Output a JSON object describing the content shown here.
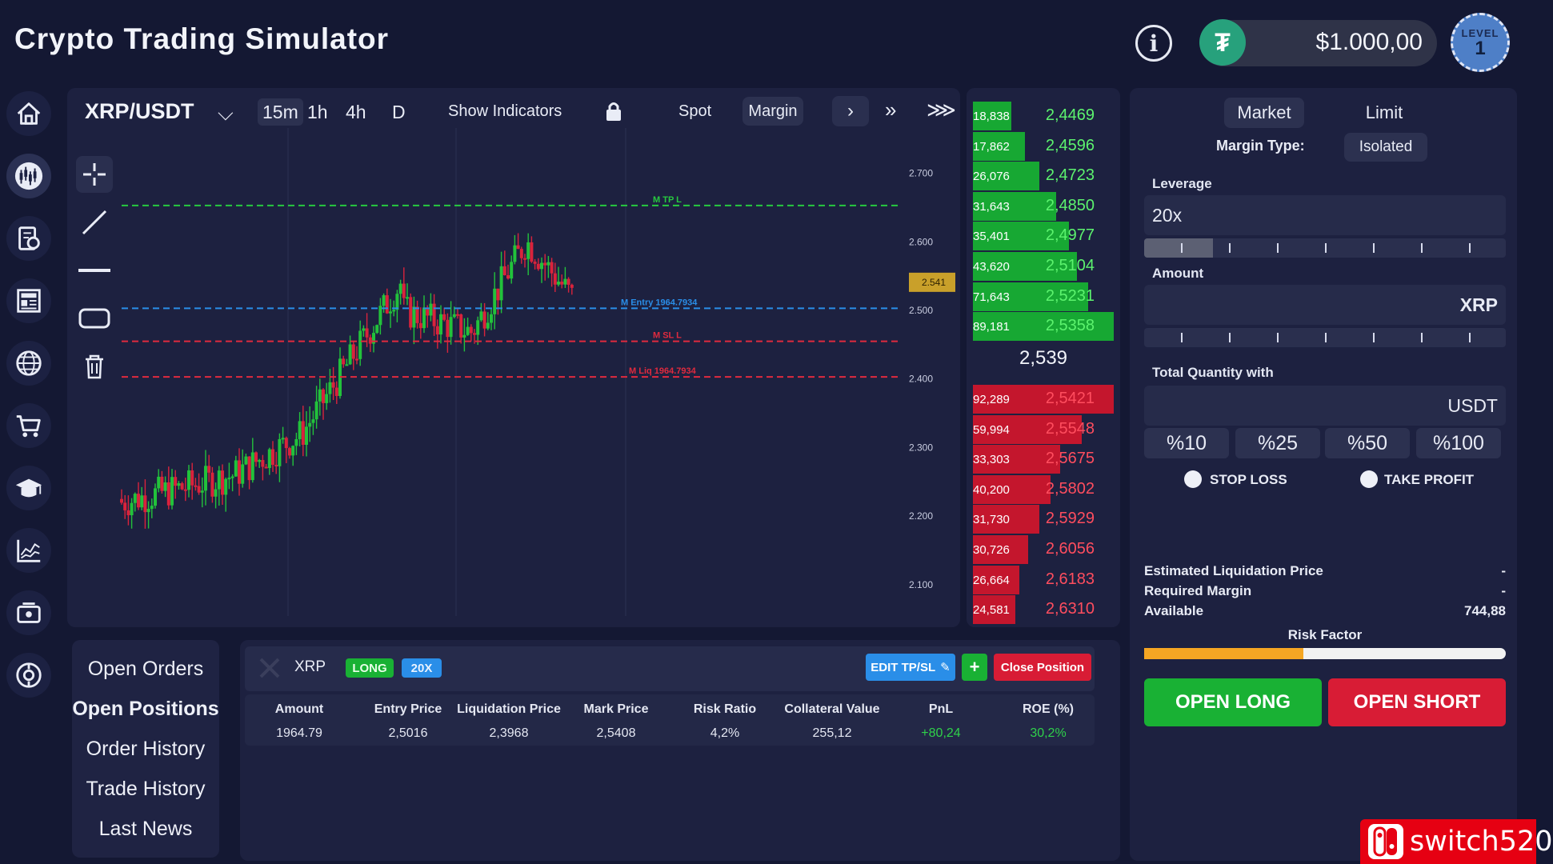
{
  "app": {
    "title": "Crypto Trading Simulator",
    "balance": "$1.000,00",
    "level_label": "LEVEL",
    "level": "1",
    "info_glyph": "i",
    "tether_glyph": "₮"
  },
  "sidebar": {
    "items": [
      "home-icon",
      "chart-icon",
      "portfolio-icon",
      "news-icon",
      "globe-icon",
      "cart-icon",
      "academy-icon",
      "analytics-icon",
      "exchange-icon",
      "settings-icon"
    ],
    "active_index": 1
  },
  "chart": {
    "pair": "XRP/USDT",
    "pair_chevron": "⌵",
    "timeframes": [
      "15m",
      "1h",
      "4h",
      "D"
    ],
    "selected_timeframe": "15m",
    "show_indicators": "Show Indicators",
    "spot": "Spot",
    "margin": "Margin",
    "next": "›",
    "double_next": "»",
    "triple_next": "⋙",
    "price_axis": [
      "2.700",
      "2.600",
      "2.500",
      "2.400",
      "2.300",
      "2.200",
      "2.100"
    ],
    "current_price_tag": "2.541",
    "line_labels": {
      "tp": "M TP L",
      "entry": "M Entry 1964.7934",
      "sl": "M SL L",
      "liq": "M Liq 1964.7934"
    },
    "tools": [
      "crosshair-icon",
      "trendline-icon",
      "horizontal-line-icon",
      "rectangle-icon",
      "trash-icon"
    ]
  },
  "orderbook": {
    "asks": [
      {
        "qty": "18,838",
        "price": "2,4469",
        "depth": 0.27
      },
      {
        "qty": "17,862",
        "price": "2,4596",
        "depth": 0.37
      },
      {
        "qty": "26,076",
        "price": "2,4723",
        "depth": 0.47
      },
      {
        "qty": "31,643",
        "price": "2,4850",
        "depth": 0.59
      },
      {
        "qty": "35,401",
        "price": "2,4977",
        "depth": 0.68
      },
      {
        "qty": "43,620",
        "price": "2,5104",
        "depth": 0.74
      },
      {
        "qty": "71,643",
        "price": "2,5231",
        "depth": 0.82
      },
      {
        "qty": "89,181",
        "price": "2,5358",
        "depth": 1.0
      }
    ],
    "mid": "2,539",
    "bids": [
      {
        "qty": "92,289",
        "price": "2,5421",
        "depth": 1.0
      },
      {
        "qty": "59,994",
        "price": "2,5548",
        "depth": 0.77
      },
      {
        "qty": "33,303",
        "price": "2,5675",
        "depth": 0.62
      },
      {
        "qty": "40,200",
        "price": "2,5802",
        "depth": 0.55
      },
      {
        "qty": "31,730",
        "price": "2,5929",
        "depth": 0.47
      },
      {
        "qty": "30,726",
        "price": "2,6056",
        "depth": 0.39
      },
      {
        "qty": "26,664",
        "price": "2,6183",
        "depth": 0.33
      },
      {
        "qty": "24,581",
        "price": "2,6310",
        "depth": 0.3
      }
    ]
  },
  "order_form": {
    "tabs": [
      "Market",
      "Limit"
    ],
    "selected_tab": "Market",
    "margin_type_label": "Margin Type:",
    "margin_type": "Isolated",
    "leverage_label": "Leverage",
    "leverage": "20x",
    "leverage_fraction": 0.19,
    "amount_label": "Amount",
    "amount_unit": "XRP",
    "total_label": "Total Quantity with",
    "total_unit": "USDT",
    "percents": [
      "%10",
      "%25",
      "%50",
      "%100"
    ],
    "stop_loss": "STOP LOSS",
    "take_profit": "TAKE PROFIT",
    "est_liq_label": "Estimated Liquidation Price",
    "est_liq": "-",
    "req_margin_label": "Required Margin",
    "req_margin": "-",
    "available_label": "Available",
    "available": "744,88",
    "risk_label": "Risk Factor",
    "risk_fraction": 0.44,
    "open_long": "OPEN LONG",
    "open_short": "OPEN SHORT"
  },
  "bottom_tabs": [
    "Open Orders",
    "Open Positions",
    "Order History",
    "Trade History",
    "Last News"
  ],
  "selected_bottom_tab": "Open Positions",
  "position": {
    "symbol": "XRP",
    "side": "LONG",
    "leverage": "20X",
    "edit_tpsl": "EDIT TP/SL",
    "add": "+",
    "close": "Close Position",
    "columns": [
      "Amount",
      "Entry Price",
      "Liquidation Price",
      "Mark Price",
      "Risk Ratio",
      "Collateral Value",
      "PnL",
      "ROE (%)"
    ],
    "values": [
      "1964.79",
      "2,5016",
      "2,3968",
      "2,5408",
      "4,2%",
      "255,12",
      "+80,24",
      "30,2%"
    ]
  },
  "watermark": {
    "text": "switch520"
  },
  "colors": {
    "green": "#19b134",
    "red": "#d81c35",
    "accent_blue": "#2a8ee8",
    "gold": "#c9a02a"
  }
}
